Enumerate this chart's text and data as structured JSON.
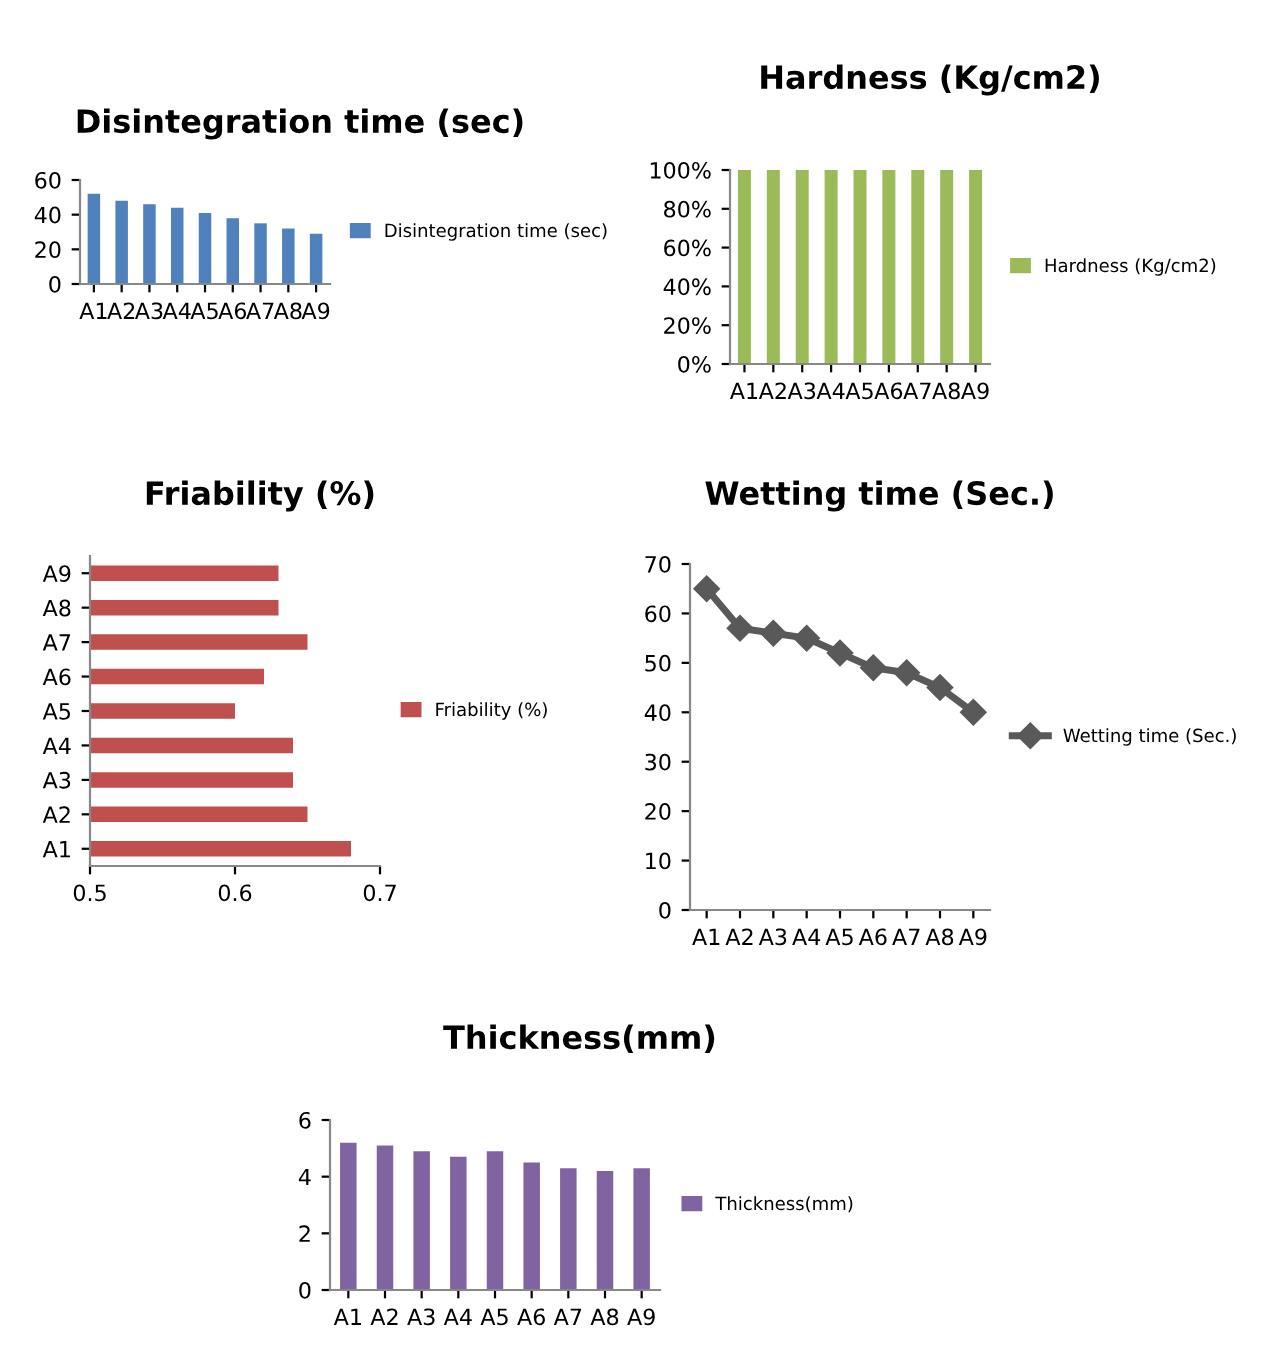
{
  "chart_data": [
    {
      "type": "bar",
      "title": "Disintegration time (sec)",
      "categories": [
        "A1",
        "A2",
        "A3",
        "A4",
        "A5",
        "A6",
        "A7",
        "A8",
        "A9"
      ],
      "series": [
        {
          "name": "Disintegration time (sec)",
          "color": "#4f81bd",
          "values": [
            52,
            48,
            46,
            44,
            41,
            38,
            35,
            32,
            29
          ]
        }
      ],
      "ylim": [
        0,
        60
      ],
      "yticks": [
        0,
        20,
        40,
        60
      ],
      "legend": "right",
      "grid": false
    },
    {
      "type": "bar",
      "title": "Hardness (Kg/cm2)",
      "categories": [
        "A1",
        "A2",
        "A3",
        "A4",
        "A5",
        "A6",
        "A7",
        "A8",
        "A9"
      ],
      "series": [
        {
          "name": "Hardness (Kg/cm2)",
          "color": "#9bbb59",
          "values": [
            100,
            100,
            100,
            100,
            100,
            100,
            100,
            100,
            100
          ]
        }
      ],
      "ylim": [
        0,
        100
      ],
      "yticks": [
        {
          "value": 0,
          "label": "0%"
        },
        {
          "value": 20,
          "label": "20%"
        },
        {
          "value": 40,
          "label": "40%"
        },
        {
          "value": 60,
          "label": "60%"
        },
        {
          "value": 80,
          "label": "80%"
        },
        {
          "value": 100,
          "label": "100%"
        }
      ],
      "legend": "right",
      "grid": false
    },
    {
      "type": "bar",
      "orientation": "horizontal",
      "title": "Friability (%)",
      "categories": [
        "A9",
        "A8",
        "A7",
        "A6",
        "A5",
        "A4",
        "A3",
        "A2",
        "A1"
      ],
      "series": [
        {
          "name": "Friability (%)",
          "color": "#c0504d",
          "values": [
            0.63,
            0.63,
            0.65,
            0.62,
            0.6,
            0.64,
            0.64,
            0.65,
            0.68
          ]
        }
      ],
      "xlim": [
        0.5,
        0.7
      ],
      "xticks": [
        0.5,
        0.6,
        0.7
      ],
      "legend": "right",
      "grid": false
    },
    {
      "type": "line",
      "title": "Wetting time (Sec.)",
      "categories": [
        "A1",
        "A2",
        "A3",
        "A4",
        "A5",
        "A6",
        "A7",
        "A8",
        "A9"
      ],
      "series": [
        {
          "name": "Wetting time (Sec.)",
          "color": "#595959",
          "values": [
            65,
            57,
            56,
            55,
            52,
            49,
            48,
            45,
            40
          ]
        }
      ],
      "ylim": [
        0,
        70
      ],
      "yticks": [
        0,
        10,
        20,
        30,
        40,
        50,
        60,
        70
      ],
      "marker": "diamond",
      "line_style": "solid",
      "legend": "right",
      "grid": false
    },
    {
      "type": "bar",
      "title": "Thickness(mm)",
      "categories": [
        "A1",
        "A2",
        "A3",
        "A4",
        "A5",
        "A6",
        "A7",
        "A8",
        "A9"
      ],
      "series": [
        {
          "name": "Thickness(mm)",
          "color": "#8064a2",
          "values": [
            5.2,
            5.1,
            4.9,
            4.7,
            4.9,
            4.5,
            4.3,
            4.2,
            4.3
          ]
        }
      ],
      "ylim": [
        0,
        6
      ],
      "yticks": [
        0,
        2,
        4,
        6
      ],
      "legend": "right",
      "grid": false
    }
  ]
}
